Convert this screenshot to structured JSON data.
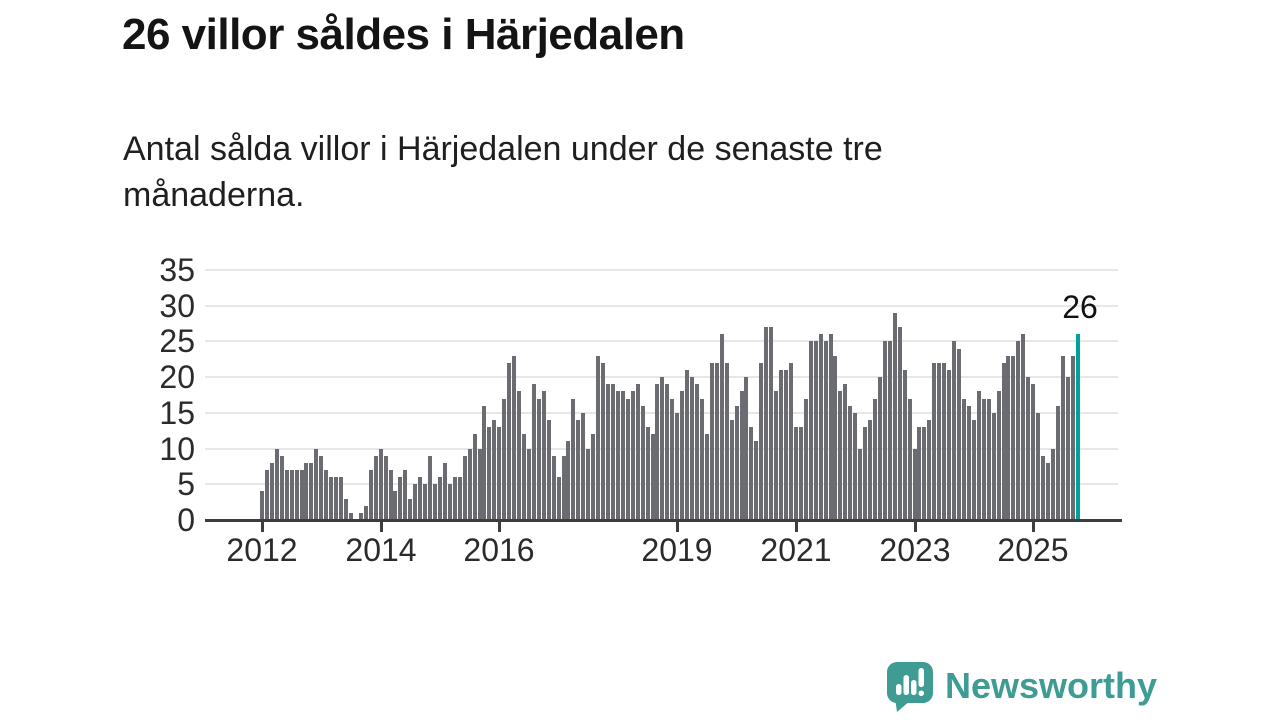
{
  "header": {
    "title": "26 villor såldes i Härjedalen",
    "subtitle": "Antal sålda villor i Härjedalen under de senaste tre månaderna."
  },
  "chart_data": {
    "type": "bar",
    "title": "26 villor såldes i Härjedalen",
    "xlabel": "",
    "ylabel": "",
    "x_start": "2012-01",
    "x_frequency": "monthly",
    "ylim": [
      0,
      35
    ],
    "grid": true,
    "yticks": [
      0,
      5,
      10,
      15,
      20,
      25,
      30,
      35
    ],
    "xticks": [
      {
        "label": "2012",
        "month_index": 0
      },
      {
        "label": "2014",
        "month_index": 24
      },
      {
        "label": "2016",
        "month_index": 48
      },
      {
        "label": "2019",
        "month_index": 84
      },
      {
        "label": "2021",
        "month_index": 108
      },
      {
        "label": "2023",
        "month_index": 132
      },
      {
        "label": "2025",
        "month_index": 156
      }
    ],
    "values": [
      4,
      7,
      8,
      10,
      9,
      7,
      7,
      7,
      7,
      8,
      8,
      10,
      9,
      7,
      6,
      6,
      6,
      3,
      1,
      0,
      1,
      2,
      7,
      9,
      10,
      9,
      7,
      4,
      6,
      7,
      3,
      5,
      6,
      5,
      9,
      5,
      6,
      8,
      5,
      6,
      6,
      9,
      10,
      12,
      10,
      16,
      13,
      14,
      13,
      17,
      22,
      23,
      18,
      12,
      10,
      19,
      17,
      18,
      14,
      9,
      6,
      9,
      11,
      17,
      14,
      15,
      10,
      12,
      23,
      22,
      19,
      19,
      18,
      18,
      17,
      18,
      19,
      16,
      13,
      12,
      19,
      20,
      19,
      17,
      15,
      18,
      21,
      20,
      19,
      17,
      12,
      22,
      22,
      26,
      22,
      14,
      16,
      18,
      20,
      13,
      11,
      22,
      27,
      27,
      18,
      21,
      21,
      22,
      13,
      13,
      17,
      25,
      25,
      26,
      25,
      26,
      23,
      18,
      19,
      16,
      15,
      10,
      13,
      14,
      17,
      20,
      25,
      25,
      29,
      27,
      21,
      17,
      10,
      13,
      13,
      14,
      22,
      22,
      22,
      21,
      25,
      24,
      17,
      16,
      14,
      18,
      17,
      17,
      15,
      18,
      22,
      23,
      23,
      25,
      26,
      20,
      19,
      15,
      9,
      8,
      10,
      16,
      23,
      20,
      23,
      26
    ],
    "highlight_last_bar": true,
    "annotation": {
      "text": "26"
    },
    "bar_color": "#6b6b72",
    "highlight_color": "#00a39c",
    "grid_color": "#e7e7e7",
    "axis_color": "#3d3d3d"
  },
  "footer": {
    "brand": "Newsworthy",
    "brand_color": "#3e9c95"
  }
}
